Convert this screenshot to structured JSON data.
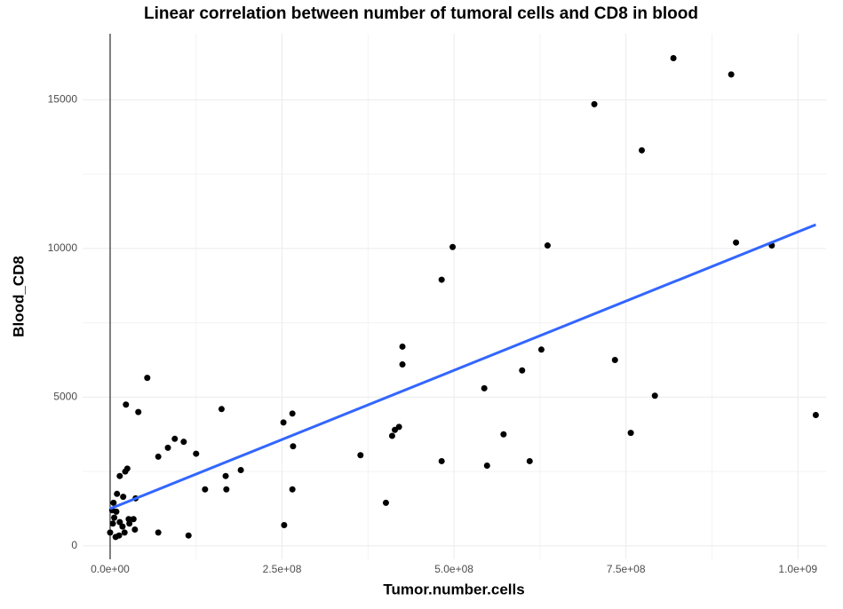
{
  "chart_data": {
    "type": "scatter",
    "title": "Linear correlation between number of tumoral cells and CD8 in blood",
    "xlabel": "Tumor.number.cells",
    "ylabel": "Blood_CD8",
    "x": [
      0,
      4000000,
      6000000,
      9000000,
      14000000,
      18000000,
      5000000,
      10000000,
      14000000,
      25000000,
      22000000,
      28000000,
      34000000,
      36000000,
      37000000,
      8000000,
      13000000,
      21000000,
      27000000,
      19000000,
      3000000,
      23000000,
      41000000,
      54000000,
      70000000,
      70000000,
      84000000,
      94000000,
      107000000,
      114000000,
      125000000,
      138000000,
      162000000,
      168000000,
      169000000,
      190000000,
      253000000,
      252000000,
      265000000,
      266000000,
      265000000,
      364000000,
      401000000,
      410000000,
      414000000,
      420000000,
      425000000,
      425000000,
      482000000,
      482000000,
      498000000,
      544000000,
      548000000,
      572000000,
      599000000,
      610000000,
      627000000,
      636000000,
      704000000,
      734000000,
      757000000,
      773000000,
      792000000,
      819000000,
      903000000,
      910000000,
      962000000,
      1026000000
    ],
    "values": [
      450,
      750,
      950,
      1150,
      800,
      650,
      1450,
      1750,
      2350,
      2600,
      2500,
      750,
      900,
      550,
      1600,
      300,
      350,
      450,
      900,
      1650,
      1200,
      4750,
      4500,
      5650,
      450,
      3000,
      3300,
      3600,
      3500,
      350,
      3100,
      1900,
      4600,
      2350,
      1900,
      2550,
      700,
      4150,
      4450,
      3350,
      1900,
      3050,
      1450,
      3700,
      3900,
      4000,
      6100,
      6700,
      8950,
      2850,
      10050,
      5300,
      2700,
      3750,
      5900,
      2850,
      6600,
      10100,
      14850,
      6250,
      3800,
      13300,
      5050,
      16400,
      15850,
      10200,
      10100,
      4400
    ],
    "color": "#000000",
    "fit": {
      "x": [
        0,
        1026000000
      ],
      "y": [
        1250,
        10800
      ],
      "color": "#3366ff"
    },
    "vline": 0,
    "xlim": [
      -40000000,
      1041000000
    ],
    "ylim": [
      -450,
      17220
    ],
    "xticks": [
      {
        "value": 0,
        "label": "0.0e+00"
      },
      {
        "value": 250000000,
        "label": "2.5e+08"
      },
      {
        "value": 500000000,
        "label": "5.0e+08"
      },
      {
        "value": 750000000,
        "label": "7.5e+08"
      },
      {
        "value": 1000000000,
        "label": "1.0e+09"
      }
    ],
    "yticks": [
      0,
      5000,
      10000,
      15000
    ],
    "minor_xticks": [
      125000000,
      375000000,
      625000000,
      875000000
    ],
    "minor_yticks": [
      2500,
      7500,
      12500
    ],
    "grid": true
  }
}
